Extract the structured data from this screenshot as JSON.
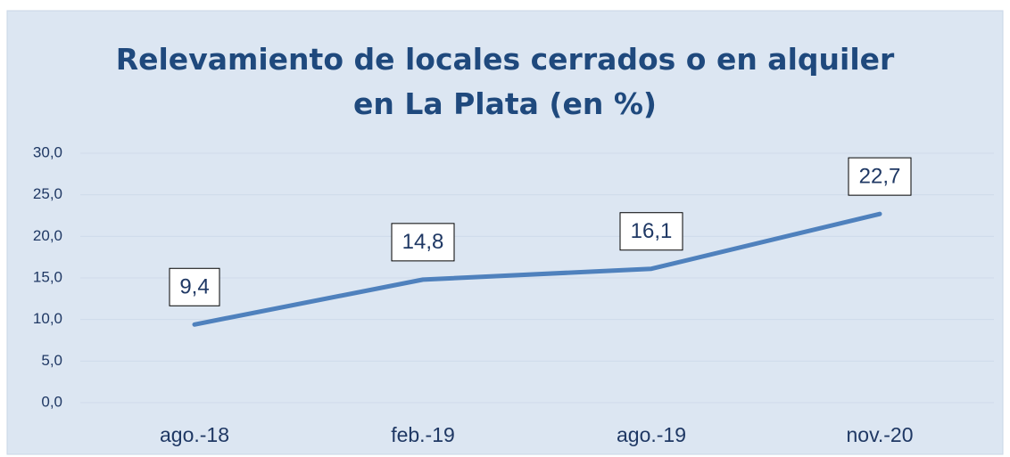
{
  "chart_data": {
    "type": "line",
    "title": "Relevamiento de locales cerrados o en alquiler en La Plata (en %)",
    "categories": [
      "ago.-18",
      "feb.-19",
      "ago.-19",
      "nov.-20"
    ],
    "series": [
      {
        "color": "#4f81bd",
        "values": [
          9.4,
          14.8,
          16.1,
          22.7
        ],
        "value_labels": [
          "9,4",
          "14,8",
          "16,1",
          "22,7"
        ]
      }
    ],
    "ylim": [
      0,
      30
    ],
    "yticks": [
      {
        "value": 0,
        "label": "0,0"
      },
      {
        "value": 5,
        "label": "5,0"
      },
      {
        "value": 10,
        "label": "10,0"
      },
      {
        "value": 15,
        "label": "15,0"
      },
      {
        "value": 20,
        "label": "20,0"
      },
      {
        "value": 25,
        "label": "25,0"
      },
      {
        "value": 30,
        "label": "30,0"
      }
    ],
    "grid": true
  }
}
